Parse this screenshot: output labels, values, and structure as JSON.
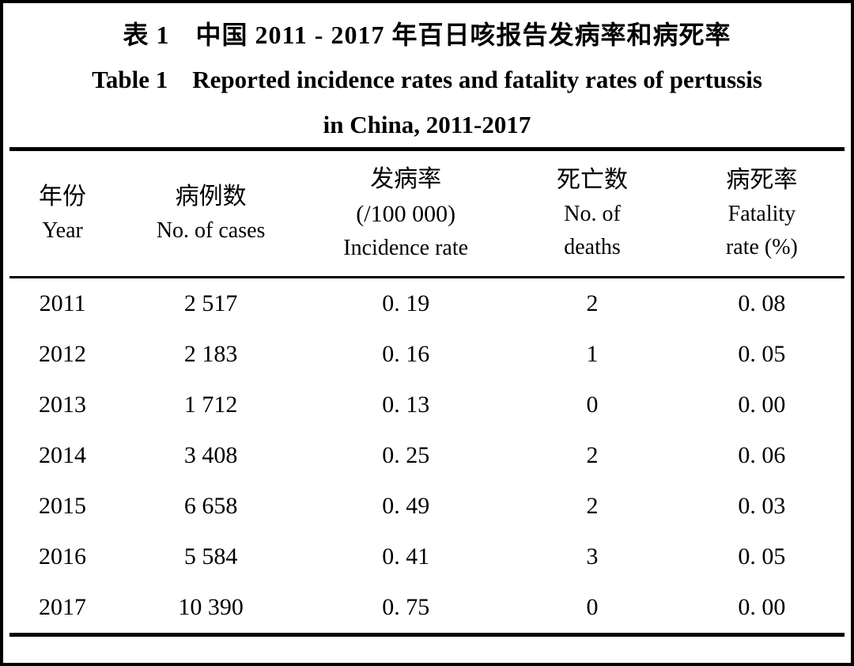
{
  "title": {
    "zh": "表 1　中国 2011 - 2017 年百日咳报告发病率和病死率",
    "en_line1": "Table 1　Reported incidence rates and fatality rates of pertussis",
    "en_line2": "in China, 2011-2017"
  },
  "table": {
    "headers": [
      {
        "lines": [
          "年份",
          "Year"
        ]
      },
      {
        "lines": [
          "病例数",
          "No. of cases"
        ]
      },
      {
        "lines": [
          "发病率",
          "(/100 000)",
          "Incidence rate"
        ]
      },
      {
        "lines": [
          "死亡数",
          "No. of",
          "deaths"
        ]
      },
      {
        "lines": [
          "病死率",
          "Fatality",
          "rate (%)"
        ]
      }
    ],
    "rows": [
      [
        "2011",
        "2 517",
        "0. 19",
        "2",
        "0. 08"
      ],
      [
        "2012",
        "2 183",
        "0. 16",
        "1",
        "0. 05"
      ],
      [
        "2013",
        "1 712",
        "0. 13",
        "0",
        "0. 00"
      ],
      [
        "2014",
        "3 408",
        "0. 25",
        "2",
        "0. 06"
      ],
      [
        "2015",
        "6 658",
        "0. 49",
        "2",
        "0. 03"
      ],
      [
        "2016",
        "5 584",
        "0. 41",
        "3",
        "0. 05"
      ],
      [
        "2017",
        "10 390",
        "0. 75",
        "0",
        "0. 00"
      ]
    ]
  }
}
